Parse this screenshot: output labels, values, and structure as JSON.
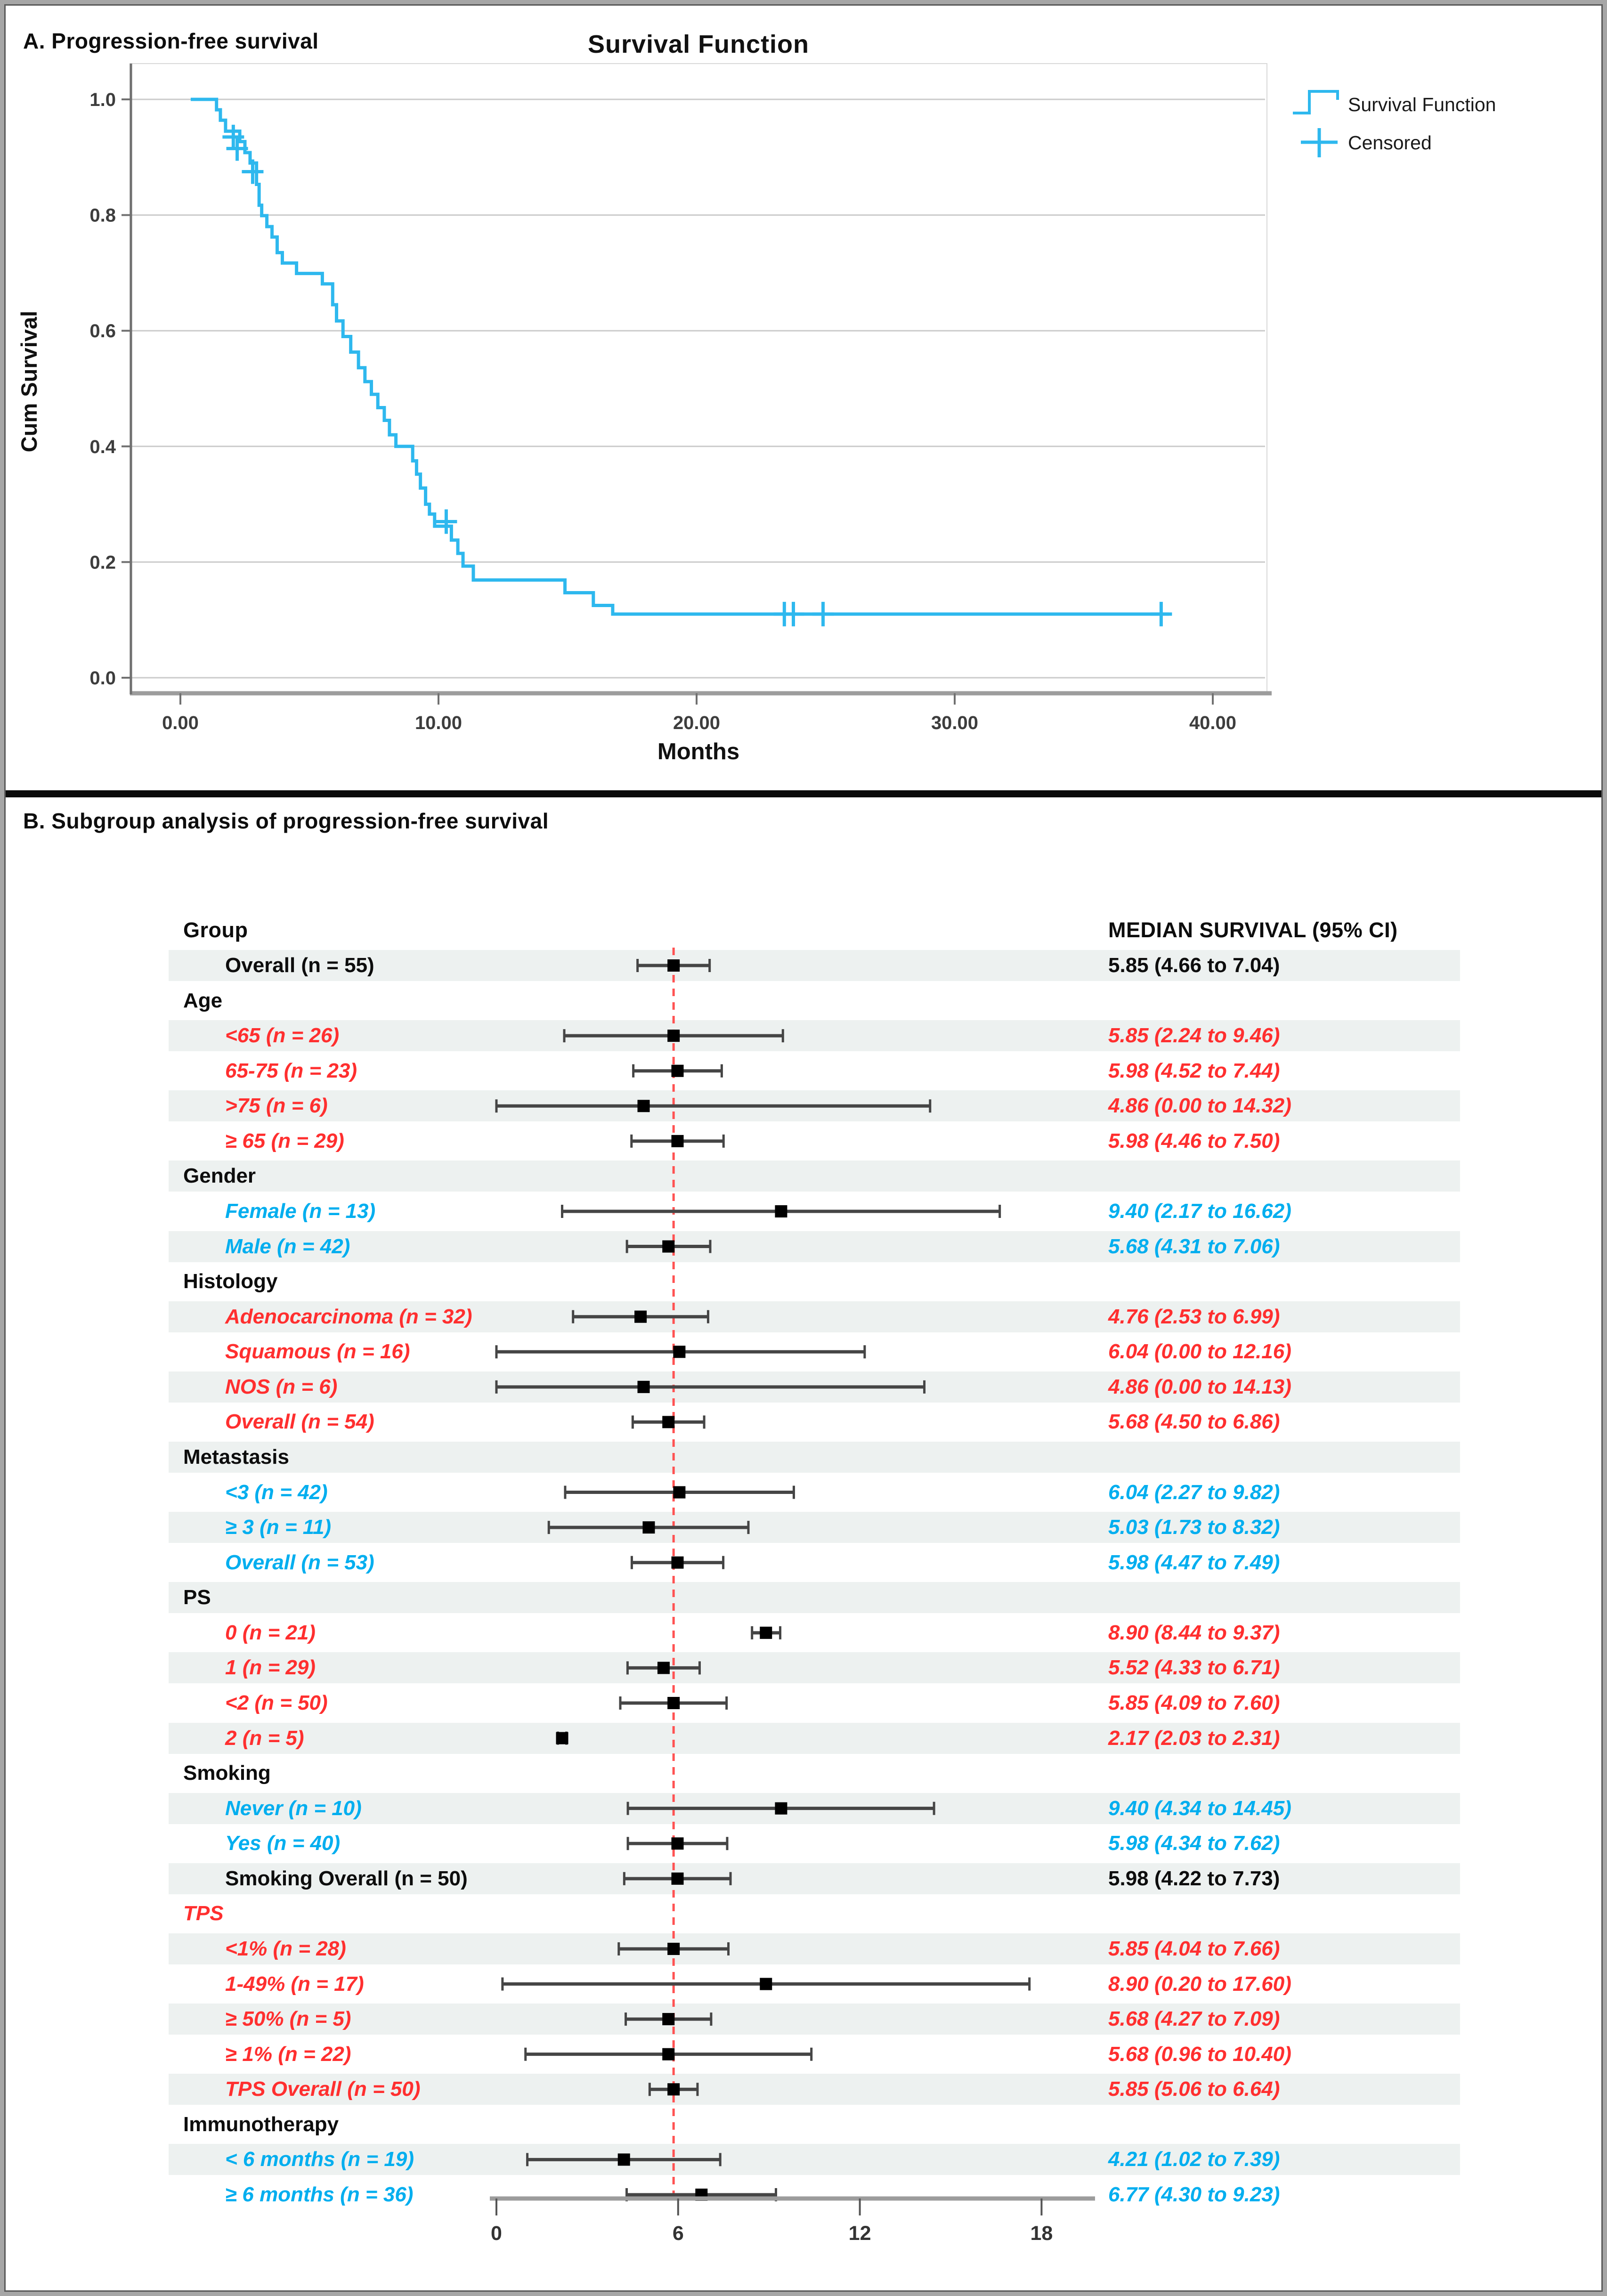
{
  "panel_a": {
    "label": "A. Progression-free survival",
    "chart_data": {
      "type": "line",
      "subtype": "kaplan-meier-step",
      "title": "Survival Function",
      "xlabel": "Months",
      "ylabel": "Cum Survival",
      "x_tick_labels": [
        "0.00",
        "10.00",
        "20.00",
        "30.00",
        "40.00"
      ],
      "x_tick_values": [
        0,
        10,
        20,
        30,
        40
      ],
      "y_tick_labels": [
        "0.0",
        "0.2",
        "0.4",
        "0.6",
        "0.8",
        "1.0"
      ],
      "y_tick_values": [
        0,
        0.2,
        0.4,
        0.6,
        0.8,
        1.0
      ],
      "xlim": [
        0,
        42
      ],
      "ylim": [
        0,
        1.0
      ],
      "grid": "horizontal",
      "legend_position": "top-right-outside",
      "legend": [
        "Survival Function",
        "Censored"
      ],
      "line_color": "#2eb8ee",
      "survival_steps": [
        [
          0.4,
          1.0
        ],
        [
          1.4,
          0.982
        ],
        [
          1.55,
          0.964
        ],
        [
          1.75,
          0.945
        ],
        [
          2.3,
          0.927
        ],
        [
          2.5,
          0.908
        ],
        [
          2.7,
          0.89
        ],
        [
          2.95,
          0.853
        ],
        [
          3.05,
          0.817
        ],
        [
          3.15,
          0.799
        ],
        [
          3.35,
          0.78
        ],
        [
          3.55,
          0.762
        ],
        [
          3.75,
          0.735
        ],
        [
          3.95,
          0.717
        ],
        [
          4.5,
          0.699
        ],
        [
          5.5,
          0.681
        ],
        [
          5.9,
          0.645
        ],
        [
          6.05,
          0.617
        ],
        [
          6.3,
          0.59
        ],
        [
          6.6,
          0.563
        ],
        [
          6.9,
          0.536
        ],
        [
          7.15,
          0.512
        ],
        [
          7.4,
          0.49
        ],
        [
          7.65,
          0.467
        ],
        [
          7.9,
          0.445
        ],
        [
          8.1,
          0.42
        ],
        [
          8.35,
          0.4
        ],
        [
          9.0,
          0.375
        ],
        [
          9.15,
          0.352
        ],
        [
          9.3,
          0.328
        ],
        [
          9.5,
          0.3
        ],
        [
          9.65,
          0.283
        ],
        [
          9.85,
          0.262
        ],
        [
          10.5,
          0.238
        ],
        [
          10.75,
          0.215
        ],
        [
          10.95,
          0.193
        ],
        [
          11.35,
          0.169
        ],
        [
          14.9,
          0.147
        ],
        [
          16.0,
          0.125
        ],
        [
          16.75,
          0.11
        ],
        [
          38.3,
          0.11
        ]
      ],
      "censored_marks": [
        [
          2.05,
          0.935
        ],
        [
          2.2,
          0.915
        ],
        [
          2.8,
          0.875
        ],
        [
          10.3,
          0.27
        ],
        [
          23.4,
          0.11
        ],
        [
          23.75,
          0.11
        ],
        [
          24.9,
          0.11
        ],
        [
          38.0,
          0.11
        ]
      ]
    }
  },
  "panel_b": {
    "label": "B. Subgroup analysis of progression-free survival",
    "chart_data": {
      "type": "forest",
      "column_headers": {
        "group": "Group",
        "median": "MEDIAN SURVIVAL (95% CI)"
      },
      "x_tick_values": [
        0,
        6,
        12,
        18
      ],
      "xlim": [
        0,
        19.5
      ],
      "reference_line": 5.85,
      "colors": {
        "red_text": "#ff2f2f",
        "cyan_text": "#00aeef",
        "black_text": "#0d0d0d",
        "row_band": "#edf1f0",
        "whisker": "#454545",
        "marker": "#000000",
        "reference_line": "#ff5252",
        "axis": "#9c9c9c"
      },
      "rows": [
        {
          "kind": "data",
          "label": "Overall (n = 55)",
          "value": "5.85 (4.66 to 7.04)",
          "median": 5.85,
          "lo": 4.66,
          "hi": 7.04,
          "color": "black",
          "italic": false
        },
        {
          "kind": "header",
          "label": "Age",
          "color": "black",
          "italic": false
        },
        {
          "kind": "data",
          "label": "<65 (n = 26)",
          "value": "5.85 (2.24 to 9.46)",
          "median": 5.85,
          "lo": 2.24,
          "hi": 9.46,
          "color": "red",
          "italic": true
        },
        {
          "kind": "data",
          "label": "65-75 (n = 23)",
          "value": "5.98 (4.52 to 7.44)",
          "median": 5.98,
          "lo": 4.52,
          "hi": 7.44,
          "color": "red",
          "italic": true
        },
        {
          "kind": "data",
          "label": ">75 (n = 6)",
          "value": "4.86 (0.00 to 14.32)",
          "median": 4.86,
          "lo": 0.0,
          "hi": 14.32,
          "color": "red",
          "italic": true
        },
        {
          "kind": "data",
          "label": "≥ 65 (n = 29)",
          "value": "5.98 (4.46 to 7.50)",
          "median": 5.98,
          "lo": 4.46,
          "hi": 7.5,
          "color": "red",
          "italic": true
        },
        {
          "kind": "header",
          "label": "Gender",
          "color": "black",
          "italic": false
        },
        {
          "kind": "data",
          "label": "Female (n = 13)",
          "value": "9.40 (2.17 to 16.62)",
          "median": 9.4,
          "lo": 2.17,
          "hi": 16.62,
          "color": "cyan",
          "italic": true
        },
        {
          "kind": "data",
          "label": "Male (n = 42)",
          "value": "5.68 (4.31 to 7.06)",
          "median": 5.68,
          "lo": 4.31,
          "hi": 7.06,
          "color": "cyan",
          "italic": true
        },
        {
          "kind": "header",
          "label": "Histology",
          "color": "black",
          "italic": false
        },
        {
          "kind": "data",
          "label": "Adenocarcinoma (n = 32)",
          "value": "4.76 (2.53 to 6.99)",
          "median": 4.76,
          "lo": 2.53,
          "hi": 6.99,
          "color": "red",
          "italic": true
        },
        {
          "kind": "data",
          "label": "Squamous (n = 16)",
          "value": "6.04 (0.00 to 12.16)",
          "median": 6.04,
          "lo": 0.0,
          "hi": 12.16,
          "color": "red",
          "italic": true
        },
        {
          "kind": "data",
          "label": "NOS (n = 6)",
          "value": "4.86 (0.00 to 14.13)",
          "median": 4.86,
          "lo": 0.0,
          "hi": 14.13,
          "color": "red",
          "italic": true
        },
        {
          "kind": "data",
          "label": "Overall (n = 54)",
          "value": "5.68 (4.50 to 6.86)",
          "median": 5.68,
          "lo": 4.5,
          "hi": 6.86,
          "color": "red",
          "italic": true
        },
        {
          "kind": "header",
          "label": "Metastasis",
          "color": "black",
          "italic": false
        },
        {
          "kind": "data",
          "label": "<3 (n = 42)",
          "value": "6.04 (2.27 to 9.82)",
          "median": 6.04,
          "lo": 2.27,
          "hi": 9.82,
          "color": "cyan",
          "italic": true
        },
        {
          "kind": "data",
          "label": "≥ 3 (n = 11)",
          "value": "5.03 (1.73 to 8.32)",
          "median": 5.03,
          "lo": 1.73,
          "hi": 8.32,
          "color": "cyan",
          "italic": true
        },
        {
          "kind": "data",
          "label": "Overall (n = 53)",
          "value": "5.98 (4.47 to 7.49)",
          "median": 5.98,
          "lo": 4.47,
          "hi": 7.49,
          "color": "cyan",
          "italic": true
        },
        {
          "kind": "header",
          "label": "PS",
          "color": "black",
          "italic": false
        },
        {
          "kind": "data",
          "label": "0 (n = 21)",
          "value": "8.90 (8.44 to 9.37)",
          "median": 8.9,
          "lo": 8.44,
          "hi": 9.37,
          "color": "red",
          "italic": true
        },
        {
          "kind": "data",
          "label": "1 (n = 29)",
          "value": "5.52 (4.33 to 6.71)",
          "median": 5.52,
          "lo": 4.33,
          "hi": 6.71,
          "color": "red",
          "italic": true
        },
        {
          "kind": "data",
          "label": "<2 (n = 50)",
          "value": "5.85 (4.09 to 7.60)",
          "median": 5.85,
          "lo": 4.09,
          "hi": 7.6,
          "color": "red",
          "italic": true
        },
        {
          "kind": "data",
          "label": "2 (n = 5)",
          "value": "2.17 (2.03 to 2.31)",
          "median": 2.17,
          "lo": 2.03,
          "hi": 2.31,
          "color": "red",
          "italic": true
        },
        {
          "kind": "header",
          "label": "Smoking",
          "color": "black",
          "italic": false
        },
        {
          "kind": "data",
          "label": "Never (n = 10)",
          "value": "9.40 (4.34 to 14.45)",
          "median": 9.4,
          "lo": 4.34,
          "hi": 14.45,
          "color": "cyan",
          "italic": true
        },
        {
          "kind": "data",
          "label": "Yes (n = 40)",
          "value": "5.98 (4.34 to 7.62)",
          "median": 5.98,
          "lo": 4.34,
          "hi": 7.62,
          "color": "cyan",
          "italic": true
        },
        {
          "kind": "data",
          "label": "Smoking Overall (n = 50)",
          "value": "5.98 (4.22 to 7.73)",
          "median": 5.98,
          "lo": 4.22,
          "hi": 7.73,
          "color": "black",
          "italic": false
        },
        {
          "kind": "header",
          "label": "TPS",
          "color": "red",
          "italic": true
        },
        {
          "kind": "data",
          "label": "<1% (n = 28)",
          "value": "5.85 (4.04 to 7.66)",
          "median": 5.85,
          "lo": 4.04,
          "hi": 7.66,
          "color": "red",
          "italic": true
        },
        {
          "kind": "data",
          "label": "1-49% (n = 17)",
          "value": "8.90 (0.20 to 17.60)",
          "median": 8.9,
          "lo": 0.2,
          "hi": 17.6,
          "color": "red",
          "italic": true
        },
        {
          "kind": "data",
          "label": "≥ 50% (n = 5)",
          "value": "5.68 (4.27 to 7.09)",
          "median": 5.68,
          "lo": 4.27,
          "hi": 7.09,
          "color": "red",
          "italic": true
        },
        {
          "kind": "data",
          "label": "≥ 1% (n = 22)",
          "value": "5.68 (0.96 to 10.40)",
          "median": 5.68,
          "lo": 0.96,
          "hi": 10.4,
          "color": "red",
          "italic": true
        },
        {
          "kind": "data",
          "label": "TPS Overall (n = 50)",
          "value": "5.85 (5.06 to 6.64)",
          "median": 5.85,
          "lo": 5.06,
          "hi": 6.64,
          "color": "red",
          "italic": true
        },
        {
          "kind": "header",
          "label": "Immunotherapy",
          "color": "black",
          "italic": false
        },
        {
          "kind": "data",
          "label": "< 6 months (n = 19)",
          "value": "4.21 (1.02 to 7.39)",
          "median": 4.21,
          "lo": 1.02,
          "hi": 7.39,
          "color": "cyan",
          "italic": true
        },
        {
          "kind": "data",
          "label": "≥ 6 months (n = 36)",
          "value": "6.77 (4.30 to 9.23)",
          "median": 6.77,
          "lo": 4.3,
          "hi": 9.23,
          "color": "cyan",
          "italic": true
        }
      ]
    }
  }
}
